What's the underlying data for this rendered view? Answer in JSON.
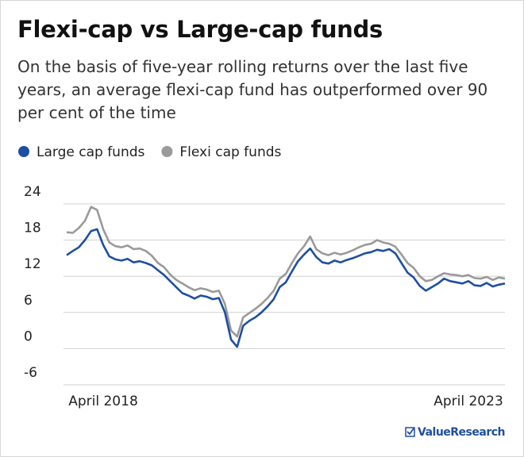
{
  "chart_data": {
    "type": "line",
    "title": "Flexi-cap vs Large-cap funds",
    "subtitle": "On the basis of five-year rolling returns over the last five years, an average flexi-cap fund has outperformed over 90 per cent of the time",
    "logo": "ValueResearch",
    "legend": "top-left",
    "grid": true,
    "ylim": [
      -6,
      24
    ],
    "yticks": [
      -6,
      0,
      6,
      12,
      18,
      24
    ],
    "categories": [
      null,
      null,
      null,
      null,
      null,
      null,
      "April 2018",
      null,
      null,
      null,
      null,
      null,
      null,
      null,
      null,
      null,
      null,
      null,
      null,
      null,
      null,
      null,
      null,
      null,
      null,
      null,
      null,
      null,
      null,
      null,
      null,
      null,
      null,
      null,
      null,
      null,
      null,
      null,
      null,
      null,
      null,
      null,
      null,
      null,
      null,
      null,
      null,
      null,
      null,
      null,
      null,
      null,
      null,
      null,
      null,
      null,
      null,
      null,
      null,
      null,
      null,
      null,
      null,
      null,
      null,
      null,
      "April 2023",
      null,
      null,
      null,
      null,
      null,
      null
    ],
    "series": [
      {
        "name": "Large cap funds",
        "color": "#1f4fa0",
        "values": [
          15.5,
          16.2,
          16.8,
          18.0,
          19.5,
          19.8,
          17.2,
          15.3,
          14.8,
          14.6,
          14.9,
          14.3,
          14.5,
          14.2,
          13.8,
          13.0,
          12.2,
          11.2,
          10.2,
          9.2,
          8.8,
          8.3,
          8.8,
          8.6,
          8.2,
          8.4,
          6.0,
          1.5,
          0.3,
          3.8,
          4.6,
          5.2,
          6.0,
          7.0,
          8.2,
          10.2,
          11.0,
          12.8,
          14.5,
          15.6,
          16.6,
          15.2,
          14.3,
          14.1,
          14.6,
          14.3,
          14.7,
          15.0,
          15.4,
          15.8,
          16.0,
          16.4,
          16.2,
          16.5,
          15.8,
          14.2,
          12.6,
          11.8,
          10.4,
          9.6,
          10.2,
          10.8,
          11.6,
          11.2,
          11.0,
          10.8,
          11.2,
          10.5,
          10.4,
          10.9,
          10.3,
          10.6,
          10.8
        ]
      },
      {
        "name": "Flexi cap funds",
        "color": "#9a9a9a",
        "values": [
          19.3,
          19.2,
          20.0,
          21.2,
          23.5,
          23.0,
          19.8,
          17.6,
          17.0,
          16.8,
          17.1,
          16.5,
          16.6,
          16.2,
          15.4,
          14.2,
          13.5,
          12.3,
          11.4,
          10.8,
          10.2,
          9.7,
          10.0,
          9.8,
          9.4,
          9.6,
          7.4,
          3.0,
          2.0,
          5.2,
          5.9,
          6.6,
          7.4,
          8.4,
          9.6,
          11.6,
          12.4,
          14.2,
          15.8,
          17.0,
          18.6,
          16.5,
          15.8,
          15.5,
          15.9,
          15.6,
          15.9,
          16.3,
          16.8,
          17.2,
          17.4,
          18.0,
          17.6,
          17.4,
          16.9,
          15.6,
          14.2,
          13.4,
          12.0,
          11.2,
          11.4,
          12.0,
          12.5,
          12.3,
          12.2,
          12.0,
          12.2,
          11.7,
          11.6,
          11.9,
          11.4,
          11.8,
          11.6
        ]
      }
    ]
  }
}
